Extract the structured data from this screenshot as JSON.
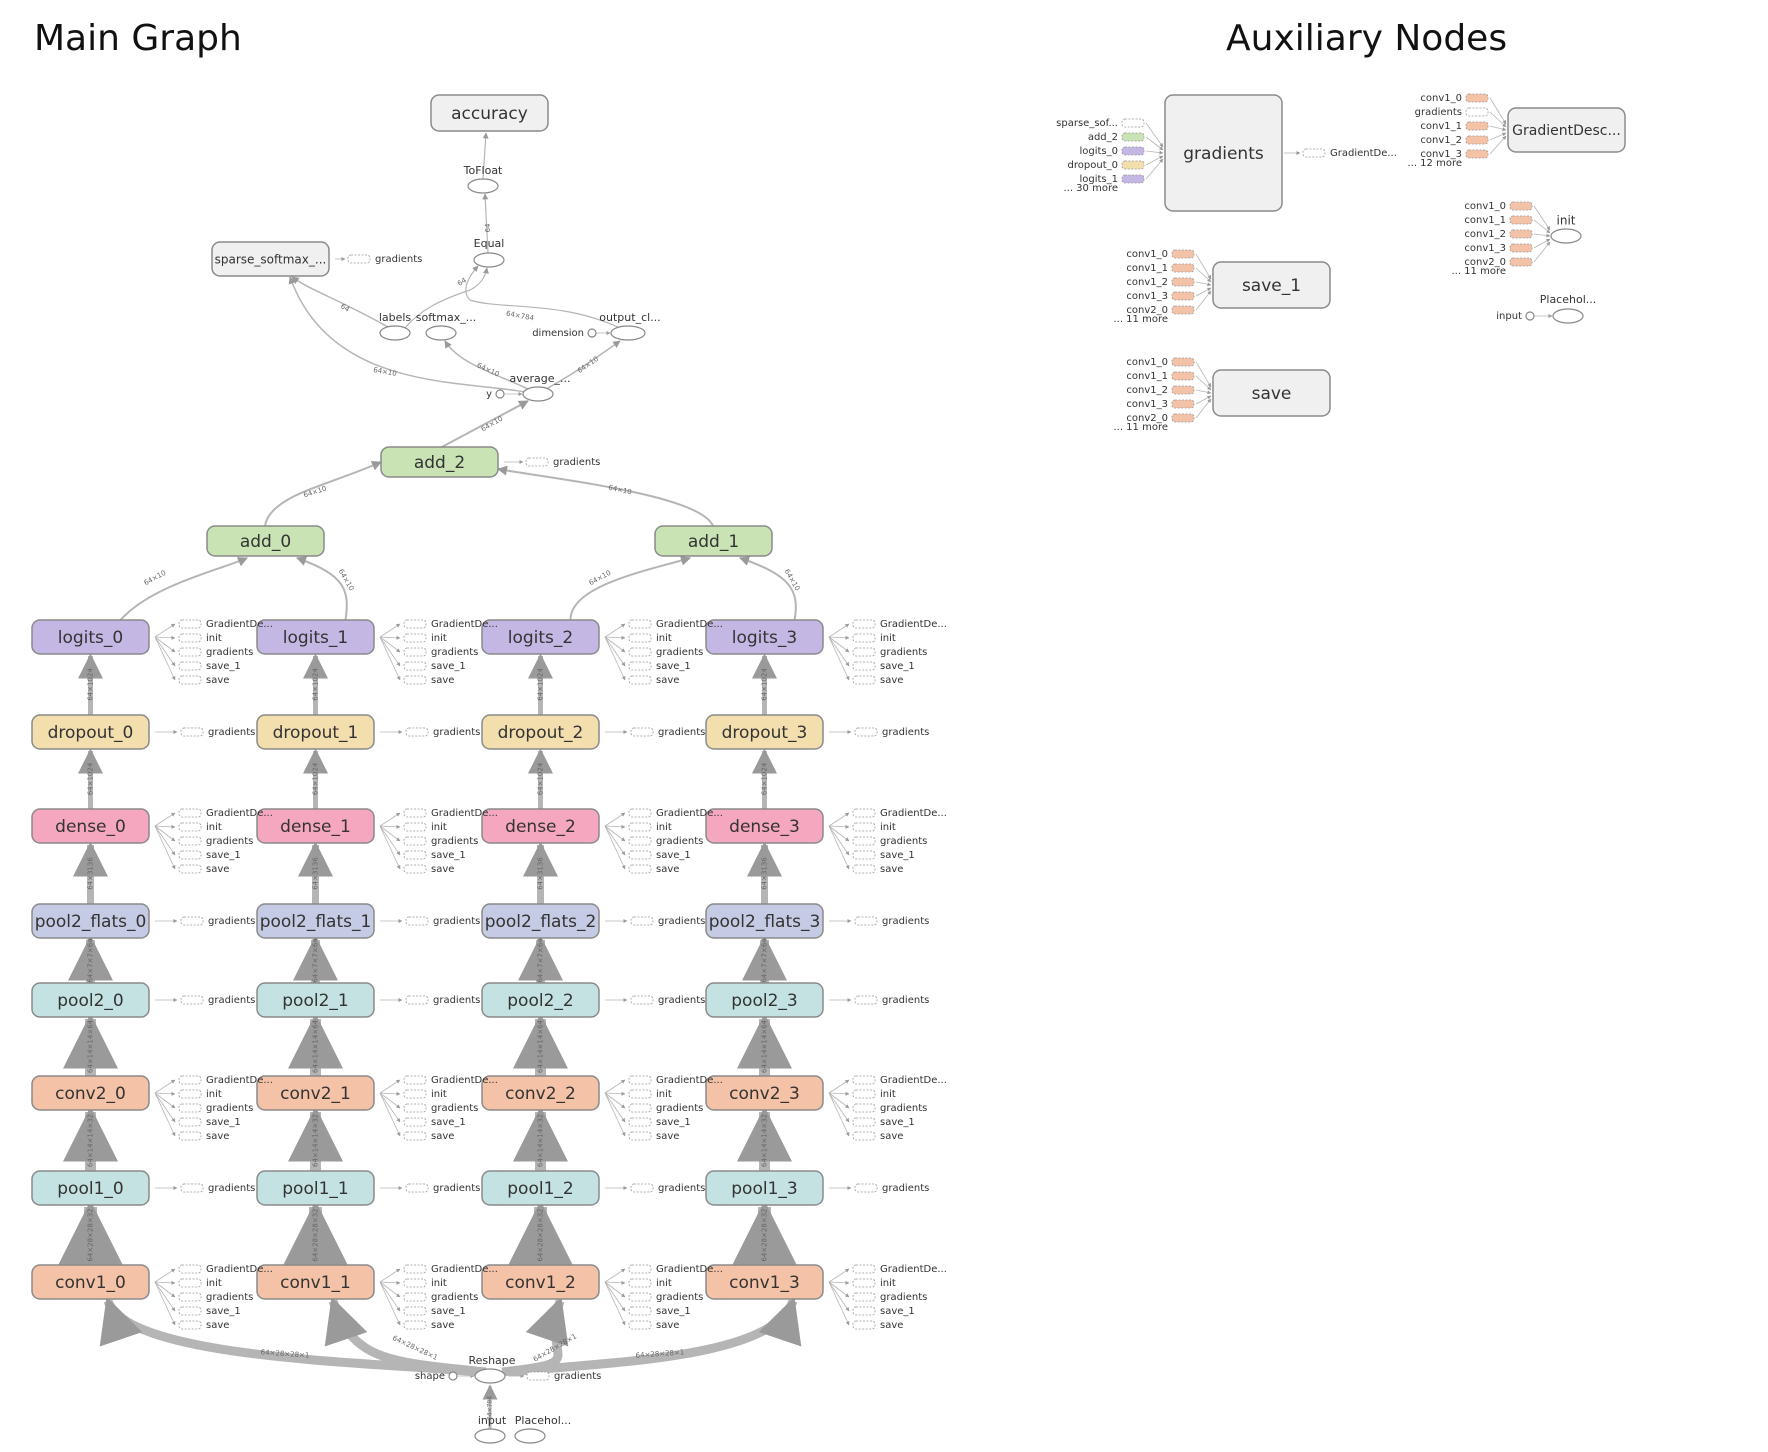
{
  "titles": {
    "main": "Main Graph",
    "aux": "Auxiliary Nodes"
  },
  "colors": {
    "conv": "#f4c2a6",
    "pool": "#c4e2e1",
    "flat": "#c5cbe4",
    "dense": "#f4a7bf",
    "dropout": "#f3deae",
    "logits": "#c5b7e4",
    "add": "#c9e3b5",
    "gray": "#f0f0f0",
    "stroke": "#8a8a8a",
    "edge": "#b5b5b5",
    "text": "#333333"
  },
  "main": {
    "column_nodes": [
      [
        "logits_0",
        "dropout_0",
        "dense_0",
        "pool2_flats_0",
        "pool2_0",
        "conv2_0",
        "pool1_0",
        "conv1_0"
      ],
      [
        "logits_1",
        "dropout_1",
        "dense_1",
        "pool2_flats_1",
        "pool2_1",
        "conv2_1",
        "pool1_1",
        "conv1_1"
      ],
      [
        "logits_2",
        "dropout_2",
        "dense_2",
        "pool2_flats_2",
        "pool2_2",
        "conv2_2",
        "pool1_2",
        "conv1_2"
      ],
      [
        "logits_3",
        "dropout_3",
        "dense_3",
        "pool2_flats_3",
        "pool2_3",
        "conv2_3",
        "pool1_3",
        "conv1_3"
      ]
    ],
    "tensor_shapes": [
      "64×1024",
      "64×1024",
      "64×3136",
      "64×7×7×64",
      "64×14×14×64",
      "64×14×14×32",
      "64×28×28×32"
    ],
    "aux_long": [
      "GradientDe...",
      "init",
      "gradients",
      "save_1",
      "save"
    ],
    "aux_short": [
      "gradients"
    ],
    "add_nodes": [
      "add_0",
      "add_1",
      "add_2"
    ],
    "add_edge_labels": [
      "64×10",
      "64×10",
      "64×10",
      "64×10",
      "64×10",
      "64×10"
    ],
    "top_nodes": {
      "accuracy": "accuracy",
      "tofloat": "ToFloat",
      "equal": "Equal",
      "sparse": "sparse_softmax_...",
      "labels": "labels",
      "softmax": "softmax_...",
      "output": "output_cl...",
      "dimension": "dimension",
      "average": "average_...",
      "y": "y",
      "reshape": "Reshape",
      "shape": "shape",
      "input": "input",
      "placeholder": "Placehol..."
    },
    "top_aux": {
      "sparse": "gradients",
      "add_2": "gradients",
      "reshape": "gradients"
    },
    "top_edge_labels": [
      "64×10",
      "64×10",
      "64×10",
      "64×10",
      "64",
      "64",
      "64",
      "64×784"
    ],
    "reshape_edge_labels": [
      "64×28×28×1",
      "64×28×28×1",
      "64×28×28×1",
      "64×28×28×1"
    ]
  },
  "aux": {
    "gradients": {
      "label": "gradients",
      "inputs": [
        "sparse_sof...",
        "add_2",
        "logits_0",
        "dropout_0",
        "logits_1"
      ],
      "more": "... 30 more",
      "output": "GradientDe..."
    },
    "gradient_desc": {
      "label": "GradientDesc...",
      "inputs": [
        "conv1_0",
        "gradients",
        "conv1_1",
        "conv1_2",
        "conv1_3"
      ],
      "more": "... 12 more"
    },
    "init": {
      "label": "init",
      "inputs": [
        "conv1_0",
        "conv1_1",
        "conv1_2",
        "conv1_3",
        "conv2_0"
      ],
      "more": "... 11 more"
    },
    "save_1": {
      "label": "save_1",
      "inputs": [
        "conv1_0",
        "conv1_1",
        "conv1_2",
        "conv1_3",
        "conv2_0"
      ],
      "more": "... 11 more"
    },
    "save": {
      "label": "save",
      "inputs": [
        "conv1_0",
        "conv1_1",
        "conv1_2",
        "conv1_3",
        "conv2_0"
      ],
      "more": "... 11 more"
    },
    "placeholder": {
      "label": "Placehol...",
      "input": "input"
    }
  }
}
